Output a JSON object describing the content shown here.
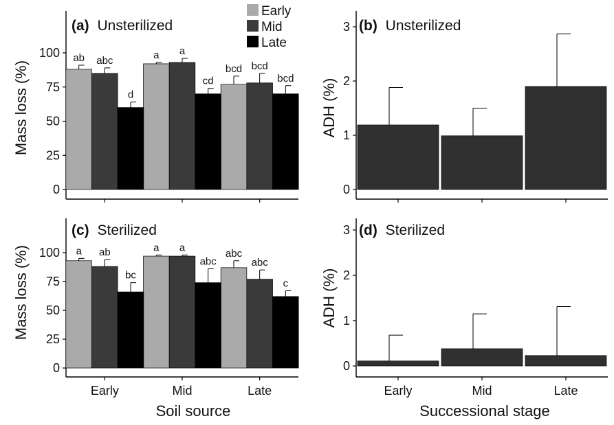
{
  "figure": {
    "shared_xlabel_left": "Soil source",
    "shared_xlabel_right": "Successional stage"
  },
  "legend": {
    "entries": [
      {
        "name": "Early",
        "color": "#aaaaaa"
      },
      {
        "name": "Mid",
        "color": "#3a3a3a"
      },
      {
        "name": "Late",
        "color": "#000000"
      }
    ]
  },
  "colors": {
    "early": "#aaaaaa",
    "mid": "#3a3a3a",
    "late": "#000000",
    "adh_bar": "#303030",
    "axis": "#000000"
  },
  "chart_data": [
    {
      "id": "a",
      "type": "bar",
      "panel_label": "(a)",
      "title": "Unsterilized",
      "ylabel": "Mass loss (%)",
      "xlabel": "",
      "ylim": [
        0,
        125
      ],
      "yticks": [
        0,
        25,
        50,
        75,
        100
      ],
      "show_x_tick_labels": false,
      "categories": [
        "Early",
        "Mid",
        "Late"
      ],
      "series": [
        {
          "name": "Early",
          "values": [
            88,
            92,
            77
          ],
          "errors": [
            3,
            1,
            6
          ],
          "letters": [
            "ab",
            "a",
            "bcd"
          ]
        },
        {
          "name": "Mid",
          "values": [
            85,
            93,
            78
          ],
          "errors": [
            4,
            3,
            7
          ],
          "letters": [
            "abc",
            "a",
            "bcd"
          ]
        },
        {
          "name": "Late",
          "values": [
            60,
            70,
            70
          ],
          "errors": [
            4,
            4,
            6
          ],
          "letters": [
            "d",
            "cd",
            "bcd"
          ]
        }
      ]
    },
    {
      "id": "b",
      "type": "bar",
      "panel_label": "(b)",
      "title": "Unsterilized",
      "ylabel": "ADH (%)",
      "xlabel": "",
      "ylim": [
        -0.1,
        3.1
      ],
      "yticks": [
        0,
        1,
        2,
        3
      ],
      "show_x_tick_labels": false,
      "categories": [
        "Early",
        "Mid",
        "Late"
      ],
      "values": [
        1.19,
        0.99,
        1.9
      ],
      "errors": [
        0.69,
        0.51,
        0.97
      ]
    },
    {
      "id": "c",
      "type": "bar",
      "panel_label": "(c)",
      "title": "Sterilized",
      "ylabel": "Mass loss (%)",
      "xlabel": "",
      "ylim": [
        0,
        125
      ],
      "yticks": [
        0,
        25,
        50,
        75,
        100
      ],
      "show_x_tick_labels": true,
      "categories": [
        "Early",
        "Mid",
        "Late"
      ],
      "series": [
        {
          "name": "Early",
          "values": [
            93,
            97,
            87
          ],
          "errors": [
            2,
            1,
            6
          ],
          "letters": [
            "a",
            "a",
            "abc"
          ]
        },
        {
          "name": "Mid",
          "values": [
            88,
            97,
            77
          ],
          "errors": [
            6,
            1,
            8
          ],
          "letters": [
            "ab",
            "a",
            "abc"
          ]
        },
        {
          "name": "Late",
          "values": [
            66,
            74,
            62
          ],
          "errors": [
            8,
            12,
            5
          ],
          "letters": [
            "bc",
            "abc",
            "c"
          ]
        }
      ]
    },
    {
      "id": "d",
      "type": "bar",
      "panel_label": "(d)",
      "title": "Sterilized",
      "ylabel": "ADH (%)",
      "xlabel": "",
      "ylim": [
        -0.1,
        3.1
      ],
      "yticks": [
        0,
        1,
        2,
        3
      ],
      "show_x_tick_labels": true,
      "categories": [
        "Early",
        "Mid",
        "Late"
      ],
      "values": [
        0.11,
        0.38,
        0.23
      ],
      "errors": [
        0.57,
        0.77,
        1.08
      ]
    }
  ]
}
